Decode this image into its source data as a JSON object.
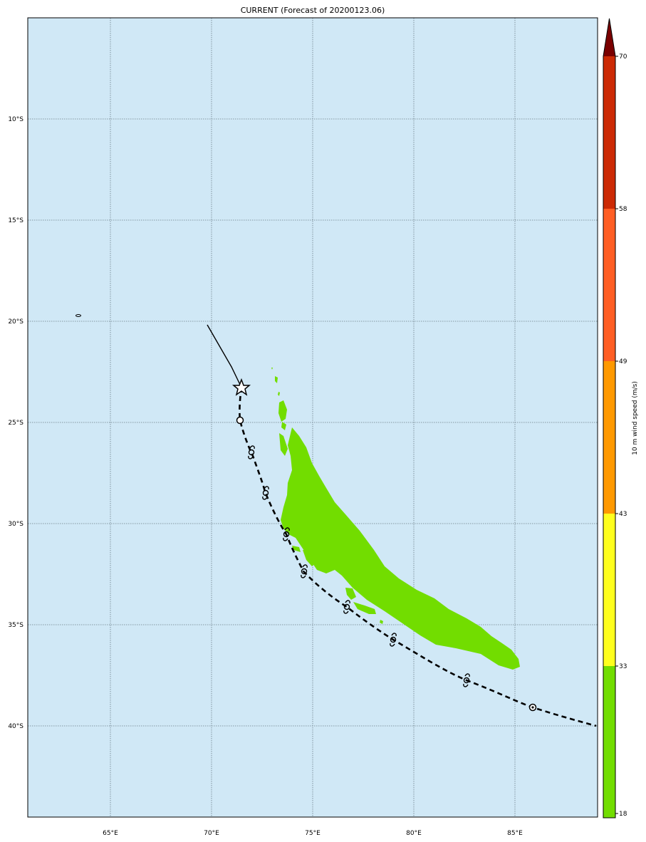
{
  "title": "CURRENT (Forecast of 20200123.06)",
  "map": {
    "ocean_color": "#d0e8f6",
    "lon_ticks": [
      "65°E",
      "70°E",
      "75°E",
      "80°E",
      "85°E"
    ],
    "lat_ticks": [
      "10°S",
      "15°S",
      "20°S",
      "25°S",
      "30°S",
      "35°S",
      "40°S"
    ],
    "swath_color": "#72dd00",
    "past_track_style": "solid",
    "forecast_track_style": "dashed",
    "current_position_symbol": "star-icon",
    "forecast_symbols": [
      "open-circle-icon",
      "cyclone-icon"
    ]
  },
  "colorbar": {
    "label": "10 m wind speed (m/s)",
    "ticks": [
      "18",
      "33",
      "43",
      "49",
      "58",
      "70"
    ],
    "colors": [
      "#72dd00",
      "#ffff1e",
      "#ff9900",
      "#ff5e24",
      "#cc2a05",
      "#7a0000"
    ],
    "extend": "max"
  }
}
